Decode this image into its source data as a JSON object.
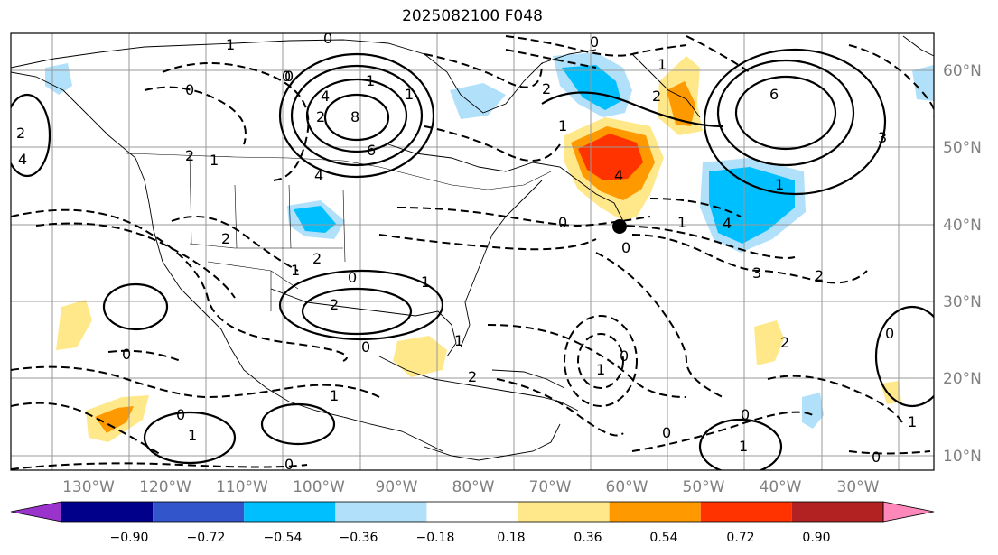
{
  "title": "2025082100 F048",
  "map": {
    "lat_labels": [
      "60°N",
      "50°N",
      "40°N",
      "30°N",
      "20°N",
      "10°N"
    ],
    "lon_labels": [
      "130°W",
      "120°W",
      "110°W",
      "100°W",
      "90°W",
      "80°W",
      "70°W",
      "60°W",
      "50°W",
      "40°W",
      "30°W"
    ],
    "contour_labels": [
      "0",
      "1",
      "0",
      "2",
      "0",
      "1",
      "4",
      "2",
      "8",
      "6",
      "4",
      "1",
      "2",
      "0",
      "1",
      "2",
      "1",
      "2",
      "2",
      "1",
      "0",
      "1",
      "2",
      "0",
      "0",
      "2",
      "1",
      "1",
      "0",
      "1",
      "0",
      "1",
      "2",
      "6",
      "3",
      "0",
      "4",
      "3",
      "2",
      "1",
      "2",
      "0",
      "1",
      "0",
      "1",
      "0",
      "0",
      "4",
      "0",
      "1",
      "4",
      "0",
      "1",
      "0"
    ]
  },
  "colorbar": {
    "ticks": [
      "−0.90",
      "−0.72",
      "−0.54",
      "−0.36",
      "−0.18",
      "0.18",
      "0.36",
      "0.54",
      "0.72",
      "0.90"
    ],
    "colors": [
      "#9933cc",
      "#00008b",
      "#3355cc",
      "#00bfff",
      "#b0e0fa",
      "#ffffff",
      "#ffe88a",
      "#ff9900",
      "#ff3300",
      "#b22222",
      "#ff88bb"
    ]
  }
}
